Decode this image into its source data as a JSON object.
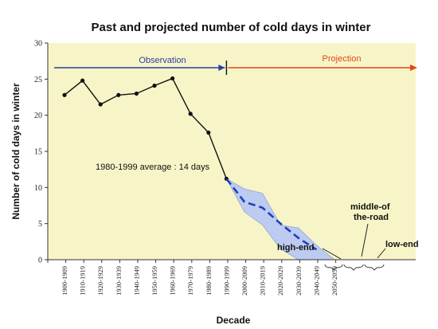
{
  "chart_data": {
    "type": "line",
    "title": "Past and projected number of cold days in winter",
    "xlabel": "Decade",
    "ylabel": "Number of cold days in winter",
    "ylim": [
      0,
      30
    ],
    "yticks": [
      0,
      5,
      10,
      15,
      20,
      25,
      30
    ],
    "grid": false,
    "categories": [
      "1900-1909",
      "1910-1919",
      "1920-1929",
      "1930-1939",
      "1940-1949",
      "1950-1959",
      "1960-1969",
      "1970-1979",
      "1980-1989",
      "1990-1999",
      "2000-2009",
      "2010-2019",
      "2020-2029",
      "2030-2039",
      "2040-2049",
      "2050-2059"
    ],
    "observed": {
      "values": [
        22.8,
        24.8,
        21.5,
        22.8,
        23.0,
        24.1,
        25.1,
        20.2,
        17.6,
        11.2
      ],
      "color": "#111111"
    },
    "projected": {
      "values": [
        11.2,
        8.0,
        7.2,
        5.0,
        3.0,
        1.4,
        null,
        null,
        null
      ],
      "color": "#1f3fbf"
    },
    "projection_band": {
      "upper": [
        11.2,
        9.8,
        9.2,
        4.8,
        4.4,
        2.0,
        0
      ],
      "lower": [
        11.2,
        6.6,
        4.8,
        1.5,
        0,
        0,
        0
      ],
      "color": "#b9c9f2"
    },
    "plot_background": "#f7f5c8",
    "periods": {
      "observation_label": "Observation",
      "observation_color": "#2c3fa0",
      "projection_label": "Projection",
      "projection_color": "#e0471a"
    },
    "annotations": {
      "average": "1980-1999 average : 14 days",
      "high_end": "high-end",
      "middle_line1": "middle-of",
      "middle_line2": "the-road",
      "low_end": "low-end"
    },
    "display_tick_labels": [
      "1900-1909",
      "1910-1919",
      "1920-1929",
      "1930-1939",
      "1940-1949",
      "1950-1959",
      "1960-1969",
      "1970-1979",
      "1980-1989",
      "1990-1999",
      "2000-2009",
      "2010-2019",
      "2020-2029",
      "2030-2039",
      "2040-2049",
      "2050-2059"
    ]
  }
}
